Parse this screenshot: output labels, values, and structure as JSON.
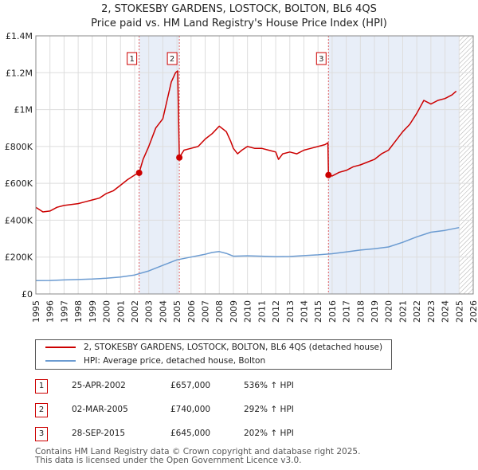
{
  "chart_data": {
    "type": "line",
    "title": "2, STOKESBY GARDENS, LOSTOCK, BOLTON, BL6 4QS",
    "subtitle": "Price paid vs. HM Land Registry's House Price Index (HPI)",
    "xlabel": "",
    "ylabel": "",
    "xlim": [
      1995,
      2026
    ],
    "ylim": [
      0,
      1400000
    ],
    "x_ticks": [
      "1995",
      "1996",
      "1997",
      "1998",
      "1999",
      "2000",
      "2001",
      "2002",
      "2003",
      "2004",
      "2005",
      "2006",
      "2007",
      "2008",
      "2009",
      "2010",
      "2011",
      "2012",
      "2013",
      "2014",
      "2015",
      "2016",
      "2017",
      "2018",
      "2019",
      "2020",
      "2021",
      "2022",
      "2023",
      "2024",
      "2025",
      "2026"
    ],
    "y_ticks": [
      {
        "value": 0,
        "label": "£0"
      },
      {
        "value": 200000,
        "label": "£200K"
      },
      {
        "value": 400000,
        "label": "£400K"
      },
      {
        "value": 600000,
        "label": "£600K"
      },
      {
        "value": 800000,
        "label": "£800K"
      },
      {
        "value": 1000000,
        "label": "£1M"
      },
      {
        "value": 1200000,
        "label": "£1.2M"
      },
      {
        "value": 1400000,
        "label": "£1.4M"
      }
    ],
    "grid": true,
    "shaded_regions": [
      [
        2002.32,
        2005.17
      ],
      [
        2015.74,
        2025.0
      ]
    ],
    "hatched_after": 2025.0,
    "series": [
      {
        "name": "2, STOKESBY GARDENS, LOSTOCK, BOLTON, BL6 4QS (detached house)",
        "color": "#cc0000",
        "points": [
          [
            1995.0,
            470000
          ],
          [
            1995.5,
            445000
          ],
          [
            1996.0,
            450000
          ],
          [
            1996.5,
            470000
          ],
          [
            1997.0,
            480000
          ],
          [
            1997.5,
            485000
          ],
          [
            1998.0,
            490000
          ],
          [
            1998.5,
            500000
          ],
          [
            1999.0,
            510000
          ],
          [
            1999.5,
            520000
          ],
          [
            2000.0,
            545000
          ],
          [
            2000.5,
            560000
          ],
          [
            2001.0,
            590000
          ],
          [
            2001.5,
            620000
          ],
          [
            2002.0,
            645000
          ],
          [
            2002.32,
            657000
          ],
          [
            2002.6,
            730000
          ],
          [
            2003.0,
            800000
          ],
          [
            2003.5,
            900000
          ],
          [
            2004.0,
            950000
          ],
          [
            2004.3,
            1050000
          ],
          [
            2004.6,
            1150000
          ],
          [
            2004.9,
            1200000
          ],
          [
            2005.05,
            1210000
          ],
          [
            2005.17,
            740000
          ],
          [
            2005.5,
            780000
          ],
          [
            2006.0,
            790000
          ],
          [
            2006.5,
            800000
          ],
          [
            2007.0,
            840000
          ],
          [
            2007.5,
            870000
          ],
          [
            2008.0,
            910000
          ],
          [
            2008.5,
            880000
          ],
          [
            2008.8,
            830000
          ],
          [
            2009.0,
            790000
          ],
          [
            2009.3,
            760000
          ],
          [
            2009.6,
            780000
          ],
          [
            2010.0,
            800000
          ],
          [
            2010.5,
            790000
          ],
          [
            2011.0,
            790000
          ],
          [
            2011.5,
            780000
          ],
          [
            2012.0,
            770000
          ],
          [
            2012.2,
            730000
          ],
          [
            2012.5,
            760000
          ],
          [
            2013.0,
            770000
          ],
          [
            2013.5,
            760000
          ],
          [
            2014.0,
            780000
          ],
          [
            2014.5,
            790000
          ],
          [
            2015.0,
            800000
          ],
          [
            2015.5,
            810000
          ],
          [
            2015.7,
            820000
          ],
          [
            2015.74,
            645000
          ],
          [
            2016.0,
            640000
          ],
          [
            2016.5,
            660000
          ],
          [
            2017.0,
            670000
          ],
          [
            2017.5,
            690000
          ],
          [
            2018.0,
            700000
          ],
          [
            2018.5,
            715000
          ],
          [
            2019.0,
            730000
          ],
          [
            2019.5,
            760000
          ],
          [
            2020.0,
            780000
          ],
          [
            2020.5,
            830000
          ],
          [
            2021.0,
            880000
          ],
          [
            2021.5,
            920000
          ],
          [
            2022.0,
            980000
          ],
          [
            2022.5,
            1050000
          ],
          [
            2023.0,
            1030000
          ],
          [
            2023.5,
            1050000
          ],
          [
            2024.0,
            1060000
          ],
          [
            2024.5,
            1080000
          ],
          [
            2024.8,
            1100000
          ]
        ]
      },
      {
        "name": "HPI: Average price, detached house, Bolton",
        "color": "#6b9bd1",
        "points": [
          [
            1995.0,
            72000
          ],
          [
            1996.0,
            73000
          ],
          [
            1997.0,
            76000
          ],
          [
            1998.0,
            78000
          ],
          [
            1999.0,
            81000
          ],
          [
            2000.0,
            85000
          ],
          [
            2001.0,
            92000
          ],
          [
            2002.0,
            103000
          ],
          [
            2003.0,
            125000
          ],
          [
            2004.0,
            155000
          ],
          [
            2005.0,
            185000
          ],
          [
            2006.0,
            200000
          ],
          [
            2007.0,
            215000
          ],
          [
            2007.5,
            225000
          ],
          [
            2008.0,
            230000
          ],
          [
            2008.5,
            220000
          ],
          [
            2009.0,
            205000
          ],
          [
            2010.0,
            207000
          ],
          [
            2011.0,
            205000
          ],
          [
            2012.0,
            202000
          ],
          [
            2013.0,
            203000
          ],
          [
            2014.0,
            208000
          ],
          [
            2015.0,
            212000
          ],
          [
            2016.0,
            218000
          ],
          [
            2017.0,
            228000
          ],
          [
            2018.0,
            238000
          ],
          [
            2019.0,
            245000
          ],
          [
            2020.0,
            255000
          ],
          [
            2021.0,
            280000
          ],
          [
            2022.0,
            310000
          ],
          [
            2023.0,
            335000
          ],
          [
            2024.0,
            345000
          ],
          [
            2025.0,
            360000
          ]
        ]
      }
    ],
    "sales": [
      {
        "label": "1",
        "date": "25-APR-2002",
        "x": 2002.32,
        "price": 657000,
        "price_label": "£657,000",
        "hpi_label": "536% ↑ HPI"
      },
      {
        "label": "2",
        "date": "02-MAR-2005",
        "x": 2005.17,
        "price": 740000,
        "price_label": "£740,000",
        "hpi_label": "292% ↑ HPI"
      },
      {
        "label": "3",
        "date": "28-SEP-2015",
        "x": 2015.74,
        "price": 645000,
        "price_label": "£645,000",
        "hpi_label": "202% ↑ HPI"
      }
    ],
    "legend": {
      "placement": "below",
      "entries": [
        "2, STOKESBY GARDENS, LOSTOCK, BOLTON, BL6 4QS (detached house)",
        "HPI: Average price, detached house, Bolton"
      ]
    },
    "colors": {
      "property_line": "#cc0000",
      "hpi_line": "#6b9bd1",
      "shade": "#e8eef8",
      "grid": "#dddddd",
      "marker_line": "#e06060"
    }
  },
  "footer": {
    "line1": "Contains HM Land Registry data © Crown copyright and database right 2025.",
    "line2": "This data is licensed under the Open Government Licence v3.0."
  }
}
